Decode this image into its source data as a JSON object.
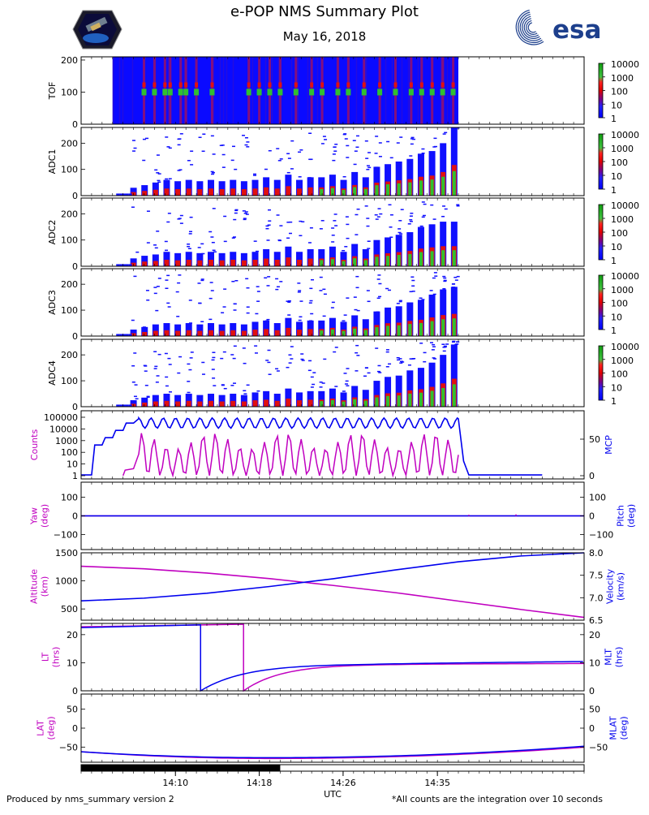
{
  "header": {
    "title": "e-POP NMS Summary Plot",
    "date": "May 16, 2018",
    "esa_logo": "esa"
  },
  "footer": {
    "left": "Produced by nms_summary version 2",
    "right": "*All counts are the integration over 10 seconds"
  },
  "colors": {
    "magenta": "#c000c0",
    "blue": "#0000ee",
    "spec_bg": "#0a0aff",
    "colorbar": [
      "#1010ff",
      "#800080",
      "#e01010",
      "#30c030",
      "#20a020"
    ]
  },
  "chart_data": [
    {
      "type": "heatmap",
      "id": "tof",
      "ylabel": "TOF",
      "ylim": [
        0,
        210
      ],
      "yticks": [
        0,
        100,
        200
      ],
      "colorbar_labels": [
        "1",
        "10",
        "100",
        "1000",
        "10000"
      ],
      "data_start": "14:04:30",
      "data_end": "14:37:00",
      "bursts": [
        "14:07",
        "14:08",
        "14:09",
        "14:09.5",
        "14:10.5",
        "14:11",
        "14:12",
        "14:13.5",
        "14:17",
        "14:18",
        "14:19",
        "14:20",
        "14:21.5",
        "14:23",
        "14:24",
        "14:25.5",
        "14:26.5",
        "14:28",
        "14:29.5",
        "14:31",
        "14:32.5",
        "14:33.5",
        "14:34.5",
        "14:35.5",
        "14:36.5"
      ]
    },
    {
      "type": "heatmap",
      "id": "adc1",
      "ylabel": "ADC1",
      "ylim": [
        0,
        260
      ],
      "yticks": [
        0,
        100,
        200
      ],
      "colorbar_labels": [
        "1",
        "10",
        "100",
        "1000",
        "10000"
      ],
      "burst_peaks": [
        30,
        40,
        50,
        60,
        55,
        60,
        55,
        60,
        55,
        60,
        55,
        60,
        70,
        60,
        80,
        60,
        70,
        70,
        80,
        60,
        90,
        70,
        110,
        120,
        130,
        140,
        160,
        170,
        200,
        260
      ]
    },
    {
      "type": "heatmap",
      "id": "adc2",
      "ylabel": "ADC2",
      "ylim": [
        0,
        260
      ],
      "yticks": [
        0,
        100,
        200
      ],
      "colorbar_labels": [
        "1",
        "10",
        "100",
        "1000",
        "10000"
      ],
      "burst_peaks": [
        30,
        40,
        45,
        55,
        50,
        55,
        50,
        55,
        50,
        55,
        50,
        55,
        65,
        55,
        75,
        55,
        65,
        65,
        75,
        55,
        85,
        65,
        100,
        110,
        120,
        130,
        150,
        160,
        170,
        170
      ]
    },
    {
      "type": "heatmap",
      "id": "adc3",
      "ylabel": "ADC3",
      "ylim": [
        0,
        260
      ],
      "yticks": [
        0,
        100,
        200
      ],
      "colorbar_labels": [
        "1",
        "10",
        "100",
        "1000",
        "10000"
      ],
      "burst_peaks": [
        25,
        35,
        45,
        50,
        45,
        50,
        45,
        50,
        45,
        50,
        45,
        55,
        60,
        50,
        70,
        55,
        60,
        60,
        70,
        55,
        80,
        65,
        95,
        110,
        115,
        130,
        140,
        160,
        180,
        190
      ]
    },
    {
      "type": "heatmap",
      "id": "adc4",
      "ylabel": "ADC4",
      "ylim": [
        0,
        260
      ],
      "yticks": [
        0,
        100,
        200
      ],
      "colorbar_labels": [
        "1",
        "10",
        "100",
        "1000",
        "10000"
      ],
      "burst_peaks": [
        25,
        35,
        45,
        50,
        45,
        50,
        45,
        50,
        45,
        50,
        45,
        55,
        60,
        50,
        70,
        55,
        60,
        60,
        70,
        55,
        80,
        65,
        100,
        115,
        120,
        140,
        150,
        170,
        200,
        240
      ]
    },
    {
      "type": "line",
      "id": "counts_mcp",
      "left_label": "Counts",
      "right_label": "MCP",
      "left_ticks": [
        "1",
        "10",
        "100",
        "1000",
        "10000",
        "100000"
      ],
      "right_ticks": [
        "0",
        "50"
      ],
      "series": [
        {
          "name": "Counts",
          "axis": "left",
          "scale": "log",
          "range": [
            1,
            100000
          ]
        },
        {
          "name": "MCP",
          "axis": "right",
          "range": [
            0,
            80
          ],
          "x": [
            "14:01",
            "14:02",
            "14:02.3",
            "14:03",
            "14:03.3",
            "14:04",
            "14:04.3",
            "14:05",
            "14:05.3",
            "14:06",
            "14:06.5",
            "14:37",
            "14:37.5",
            "14:38",
            "14:40",
            "14:45"
          ],
          "values": [
            1,
            1,
            42,
            42,
            52,
            52,
            62,
            62,
            72,
            72,
            78,
            78,
            20,
            1,
            1,
            1
          ]
        }
      ]
    },
    {
      "type": "line",
      "id": "yaw_pitch",
      "left_label": "Yaw",
      "left_unit": "(deg)",
      "right_label": "Pitch",
      "right_unit": "(deg)",
      "ylim": [
        -180,
        180
      ],
      "yticks": [
        "−100",
        "0",
        "100"
      ],
      "series": [
        {
          "name": "Yaw",
          "values": [
            0,
            0
          ]
        },
        {
          "name": "Pitch",
          "values": [
            0,
            0
          ]
        }
      ]
    },
    {
      "type": "line",
      "id": "alt_vel",
      "left_label": "Altitude",
      "left_unit": "(km)",
      "right_label": "Velocity",
      "right_unit": "(km/s)",
      "left_ticks": [
        "500",
        "1000",
        "1500"
      ],
      "left_range": [
        300,
        1500
      ],
      "right_ticks": [
        "6.5",
        "7.0",
        "7.5",
        "8.0"
      ],
      "right_range": [
        6.5,
        8.0
      ],
      "series": [
        {
          "name": "Altitude",
          "axis": "left",
          "x": [
            "14:01",
            "14:07",
            "14:13",
            "14:19",
            "14:25",
            "14:31",
            "14:37",
            "14:43",
            "14:49"
          ],
          "values": [
            1260,
            1215,
            1140,
            1040,
            920,
            790,
            640,
            490,
            350
          ]
        },
        {
          "name": "Velocity",
          "axis": "right",
          "x": [
            "14:01",
            "14:07",
            "14:13",
            "14:19",
            "14:25",
            "14:31",
            "14:37",
            "14:43",
            "14:49"
          ],
          "values": [
            6.93,
            6.99,
            7.1,
            7.25,
            7.42,
            7.62,
            7.8,
            7.93,
            8.0
          ]
        }
      ]
    },
    {
      "type": "line",
      "id": "lt_mlt",
      "left_label": "LT",
      "left_unit": "(hrs)",
      "right_label": "MLT",
      "right_unit": "(hrs)",
      "yticks": [
        "0",
        "10",
        "20"
      ],
      "ylim": [
        0,
        24
      ]
    },
    {
      "type": "line",
      "id": "lat_mlat",
      "left_label": "LAT",
      "left_unit": "(deg)",
      "right_label": "MLAT",
      "right_unit": "(deg)",
      "left_ticks": [
        "−50",
        "0",
        "50"
      ],
      "right_ticks": [
        "−50",
        "0",
        "50"
      ],
      "ylim": [
        -90,
        90
      ]
    }
  ],
  "time_axis": {
    "label": "UTC",
    "start": "14:01",
    "end": "14:49",
    "ticks": [
      "14:10",
      "14:18",
      "14:26",
      "14:35"
    ],
    "coverage_bar": {
      "start": "14:01",
      "end": "14:20"
    }
  }
}
